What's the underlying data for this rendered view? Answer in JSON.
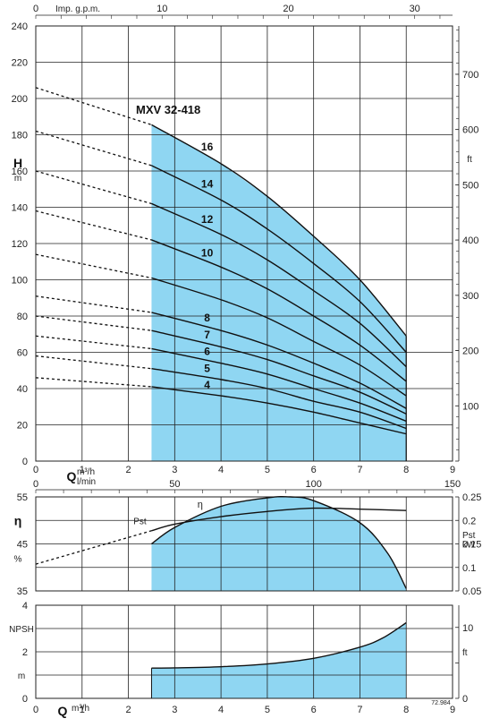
{
  "colors": {
    "fill": "#8fd6f2",
    "grid": "#222222",
    "curve": "#111111"
  },
  "chart_data": [
    {
      "type": "line",
      "title": "MXV 32-418",
      "ylabel": "H",
      "yunit": "m",
      "y2unit": "ft",
      "top_axis_label": "Imp. g.p.m.",
      "xlabel": "Q",
      "xunit": "m³/h",
      "xunit2": "l/min",
      "xlim": [
        0,
        9
      ],
      "ylim": [
        0,
        240
      ],
      "x_ticks": [
        0,
        1,
        2,
        3,
        4,
        5,
        6,
        7,
        8,
        9
      ],
      "y_ticks": [
        0,
        20,
        40,
        60,
        80,
        100,
        120,
        140,
        160,
        180,
        200,
        220,
        240
      ],
      "y2_ticks": [
        0,
        100,
        200,
        300,
        400,
        500,
        600,
        700
      ],
      "top_ticks": [
        0,
        10,
        20,
        30
      ],
      "lmin_ticks": [
        0,
        50,
        100,
        150
      ],
      "operating_range": [
        2.5,
        8
      ],
      "series": [
        {
          "name": "16",
          "x": [
            0,
            2.5,
            4,
            5,
            6,
            7,
            8
          ],
          "y": [
            206,
            185.5,
            164,
            146,
            124,
            100,
            69
          ]
        },
        {
          "name": "14",
          "x": [
            0,
            2.5,
            4,
            5,
            6,
            7,
            8
          ],
          "y": [
            182,
            163,
            144,
            128,
            109,
            88,
            60
          ]
        },
        {
          "name": "12",
          "x": [
            0,
            2.5,
            4,
            5,
            6,
            7,
            8
          ],
          "y": [
            160,
            142,
            125,
            111,
            94,
            76,
            52
          ]
        },
        {
          "name": "10",
          "x": [
            0,
            2.5,
            4,
            5,
            6,
            7,
            8
          ],
          "y": [
            138,
            122,
            107,
            95,
            80,
            64,
            44
          ]
        },
        {
          "name": "",
          "x": [
            0,
            2.5,
            4,
            5,
            6,
            7,
            8
          ],
          "y": [
            114,
            101,
            89,
            79,
            66,
            53,
            36
          ]
        },
        {
          "name": "8",
          "x": [
            0,
            2.5,
            4,
            5,
            6,
            7,
            8
          ],
          "y": [
            91,
            82,
            72,
            64,
            54,
            43,
            29
          ]
        },
        {
          "name": "7",
          "x": [
            0,
            2.5,
            4,
            5,
            6,
            7,
            8
          ],
          "y": [
            80,
            72,
            63,
            56,
            47,
            38,
            26
          ]
        },
        {
          "name": "6",
          "x": [
            0,
            2.5,
            4,
            5,
            6,
            7,
            8
          ],
          "y": [
            69,
            62,
            54,
            48,
            40,
            32,
            22
          ]
        },
        {
          "name": "5",
          "x": [
            0,
            2.5,
            4,
            5,
            6,
            7,
            8
          ],
          "y": [
            58,
            51,
            45,
            40,
            33,
            27,
            18
          ]
        },
        {
          "name": "4",
          "x": [
            0,
            2.5,
            4,
            5,
            6,
            7,
            8
          ],
          "y": [
            46,
            41,
            36,
            32,
            27,
            21,
            15
          ]
        }
      ]
    },
    {
      "type": "line",
      "ylabel": "η",
      "yunit": "%",
      "y2label": "Pst",
      "y2unit": "kW",
      "x_top_label": "l/min",
      "xlim": [
        0,
        9
      ],
      "ylim": [
        35,
        55
      ],
      "y_ticks": [
        35,
        45,
        55
      ],
      "y2_ticks": [
        0.05,
        0.1,
        0.15,
        0.2,
        0.25
      ],
      "ylim2": [
        0.05,
        0.25
      ],
      "series": [
        {
          "name": "η",
          "x": [
            2.5,
            3,
            4,
            5,
            5.5,
            6,
            7,
            7.6,
            8
          ],
          "y": [
            45,
            48.5,
            53,
            54.8,
            55,
            54.2,
            49.5,
            43,
            35.5
          ]
        },
        {
          "name": "Pst",
          "axis": "right",
          "x": [
            0,
            2.5,
            3,
            4,
            5,
            6,
            7,
            8
          ],
          "y": [
            0.107,
            0.178,
            0.192,
            0.208,
            0.219,
            0.226,
            0.224,
            0.221
          ]
        }
      ]
    },
    {
      "type": "area",
      "ylabel": "NPSH",
      "yunit": "m",
      "y2unit": "ft",
      "xlabel": "Q",
      "xunit": "m³/h",
      "xlim": [
        0,
        9
      ],
      "ylim": [
        0,
        4
      ],
      "y_ticks": [
        0,
        2,
        4
      ],
      "y2_ticks": [
        0,
        10
      ],
      "series": [
        {
          "name": "NPSH",
          "x": [
            2.5,
            3,
            4,
            5,
            6,
            7,
            7.5,
            8
          ],
          "y": [
            1.3,
            1.31,
            1.36,
            1.48,
            1.72,
            2.2,
            2.6,
            3.25
          ]
        }
      ]
    }
  ],
  "footnote": "72.984"
}
